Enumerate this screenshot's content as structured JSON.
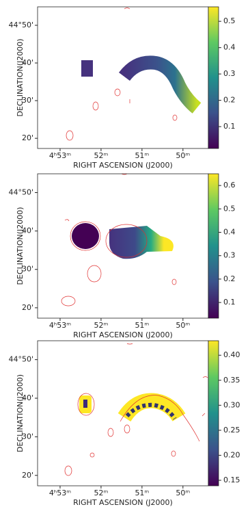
{
  "chart_data": [
    {
      "type": "heatmap",
      "xlabel": "RIGHT ASCENSION (J2000)",
      "ylabel": "DECLINATION(J2000)",
      "xlim": [
        53.55,
        49.38
      ],
      "ylim": [
        17.3,
        54.9
      ],
      "xticks": [
        {
          "value": 53,
          "label": "4ʰ53ᵐ"
        },
        {
          "value": 52,
          "label": "52ᵐ"
        },
        {
          "value": 51,
          "label": "51ᵐ"
        },
        {
          "value": 50,
          "label": "50ᵐ"
        }
      ],
      "yticks": [
        {
          "value": 50,
          "label": "44°50'"
        },
        {
          "value": 40,
          "label": "40'"
        },
        {
          "value": 30,
          "label": "30'"
        },
        {
          "value": 20,
          "label": "20'"
        }
      ],
      "clim": [
        0.017,
        0.555
      ],
      "cticks": [
        0.1,
        0.2,
        0.3,
        0.4,
        0.5
      ]
    },
    {
      "type": "heatmap",
      "xlabel": "RIGHT ASCENSION (J2000)",
      "ylabel": "DECLINATION(J2000)",
      "xlim": [
        53.55,
        49.38
      ],
      "ylim": [
        17.3,
        54.9
      ],
      "xticks": [
        {
          "value": 53,
          "label": "4ʰ53ᵐ"
        },
        {
          "value": 52,
          "label": "52ᵐ"
        },
        {
          "value": 51,
          "label": "51ᵐ"
        },
        {
          "value": 50,
          "label": "50ᵐ"
        }
      ],
      "yticks": [
        {
          "value": 50,
          "label": "44°50'"
        },
        {
          "value": 40,
          "label": "40'"
        },
        {
          "value": 30,
          "label": "30'"
        },
        {
          "value": 20,
          "label": "20'"
        }
      ],
      "clim": [
        0.033,
        0.65
      ],
      "cticks": [
        0.1,
        0.2,
        0.3,
        0.4,
        0.5,
        0.6
      ]
    },
    {
      "type": "heatmap",
      "xlabel": "RIGHT ASCENSION (J2000)",
      "ylabel": "DECLINATION(J2000)",
      "xlim": [
        53.55,
        49.38
      ],
      "ylim": [
        17.3,
        54.9
      ],
      "xticks": [
        {
          "value": 53,
          "label": "4ʰ53ᵐ"
        },
        {
          "value": 52,
          "label": "52ᵐ"
        },
        {
          "value": 51,
          "label": "51ᵐ"
        },
        {
          "value": 50,
          "label": "50ᵐ"
        }
      ],
      "yticks": [
        {
          "value": 50,
          "label": "44°50'"
        },
        {
          "value": 40,
          "label": "40'"
        },
        {
          "value": 30,
          "label": "30'"
        },
        {
          "value": 20,
          "label": "20'"
        }
      ],
      "clim": [
        0.139,
        0.429
      ],
      "cticks": [
        {
          "value": 0.15,
          "label": "0.15"
        },
        {
          "value": 0.2,
          "label": "0.20"
        },
        {
          "value": 0.25,
          "label": "0.25"
        },
        {
          "value": 0.3,
          "label": "0.30"
        },
        {
          "value": 0.35,
          "label": "0.35"
        },
        {
          "value": 0.4,
          "label": "0.40"
        }
      ]
    }
  ]
}
